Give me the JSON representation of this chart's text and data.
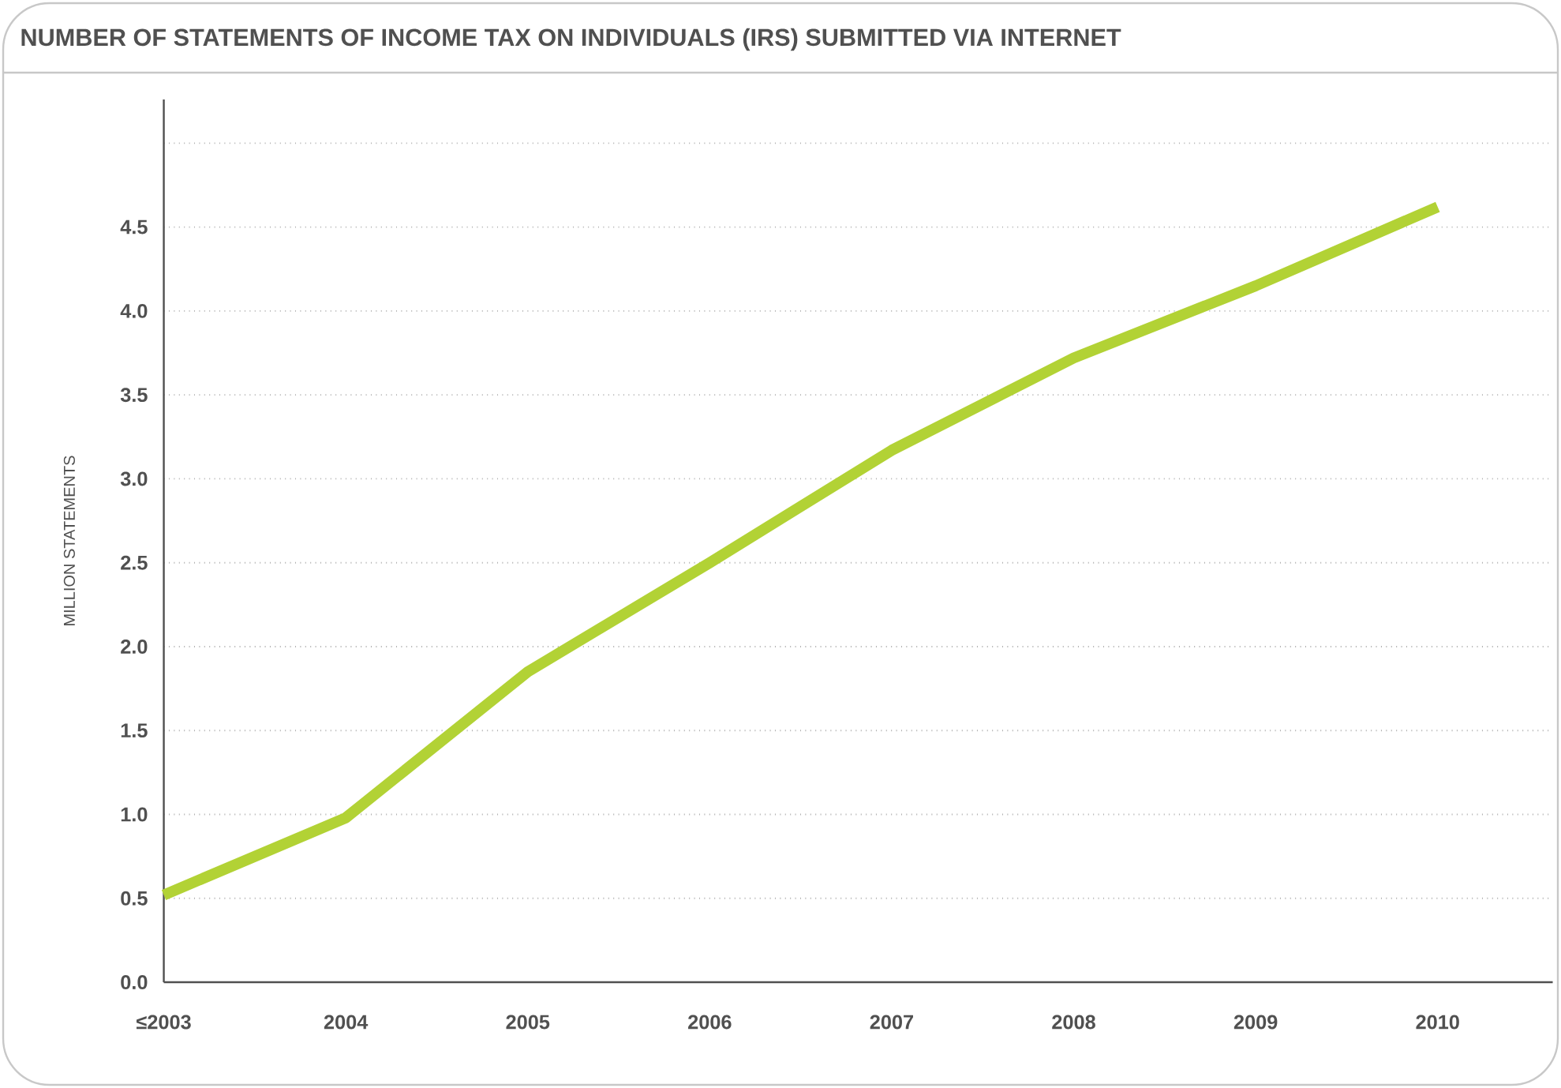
{
  "chart_data": {
    "type": "line",
    "title": "NUMBER OF STATEMENTS OF INCOME TAX ON INDIVIDUALS (IRS) SUBMITTED VIA INTERNET",
    "ylabel": "MILLION STATEMENTS",
    "categories": [
      "≤2003",
      "2004",
      "2005",
      "2006",
      "2007",
      "2008",
      "2009",
      "2010"
    ],
    "series": [
      {
        "color": "#b2d235",
        "values": [
          0.52,
          0.98,
          1.85,
          2.5,
          3.17,
          3.72,
          4.15,
          4.62
        ]
      }
    ],
    "ylim": [
      0,
      5.26
    ],
    "yticks": [
      {
        "value": 0,
        "label": "0.0"
      },
      {
        "value": 0.5,
        "label": "0.5"
      },
      {
        "value": 1,
        "label": "1.0"
      },
      {
        "value": 1.5,
        "label": "1.5"
      },
      {
        "value": 2,
        "label": "2.0"
      },
      {
        "value": 2.5,
        "label": "2.5"
      },
      {
        "value": 3,
        "label": "3.0"
      },
      {
        "value": 3.5,
        "label": "3.5"
      },
      {
        "value": 4,
        "label": "4.0"
      },
      {
        "value": 4.5,
        "label": "4.5"
      },
      {
        "value": 5,
        "label": null
      }
    ],
    "grid": "y",
    "marker": "none",
    "line_style": "solid"
  }
}
